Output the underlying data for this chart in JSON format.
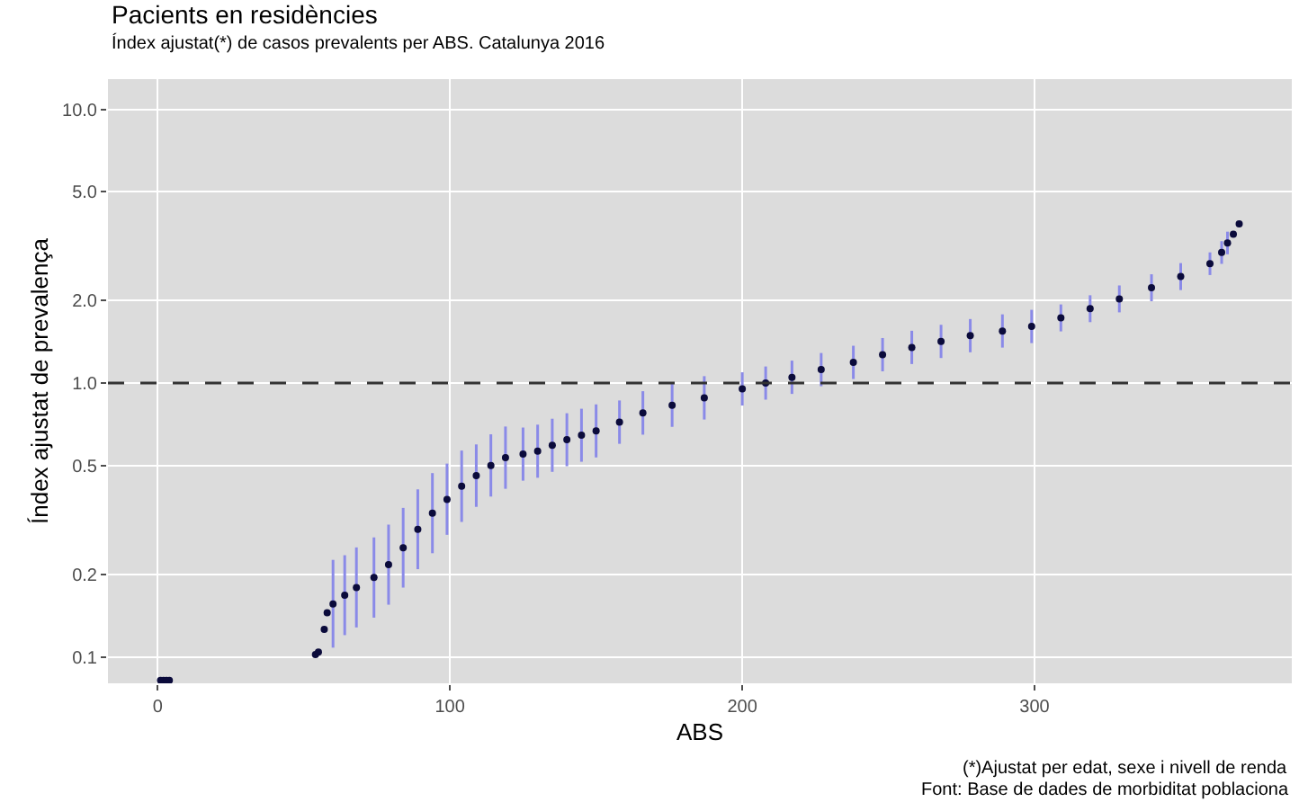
{
  "chart_data": {
    "type": "scatter",
    "title": "Pacients en residències",
    "subtitle": "Índex ajustat(*) de casos prevalents per ABS. Catalunya 2016",
    "xlabel": "ABS",
    "ylabel": "Índex ajustat de prevalença",
    "annotations": [
      "(*)Ajustat per edat, sexe i nivell de renda",
      "Font: Base de dades de morbiditat poblaciona"
    ],
    "x": [
      1,
      2,
      3,
      4,
      54,
      55,
      57,
      58,
      60,
      64,
      68,
      74,
      79,
      84,
      89,
      94,
      99,
      104,
      109,
      114,
      119,
      125,
      130,
      135,
      140,
      145,
      150,
      158,
      166,
      176,
      187,
      200,
      208,
      217,
      227,
      238,
      248,
      258,
      268,
      278,
      289,
      299,
      309,
      319,
      329,
      340,
      350,
      360,
      364,
      366,
      368,
      370
    ],
    "series": [
      {
        "color": "#0b0b3b",
        "marker": "circle",
        "values": [
          0.082,
          0.082,
          0.082,
          0.082,
          0.102,
          0.104,
          0.126,
          0.145,
          0.156,
          0.168,
          0.179,
          0.195,
          0.217,
          0.25,
          0.292,
          0.335,
          0.376,
          0.42,
          0.459,
          0.5,
          0.534,
          0.55,
          0.564,
          0.593,
          0.621,
          0.645,
          0.669,
          0.72,
          0.778,
          0.83,
          0.883,
          0.952,
          1.0,
          1.05,
          1.12,
          1.19,
          1.27,
          1.35,
          1.42,
          1.49,
          1.55,
          1.61,
          1.73,
          1.87,
          2.03,
          2.23,
          2.45,
          2.73,
          3.0,
          3.25,
          3.5,
          3.82
        ],
        "errors": [
          null,
          null,
          null,
          null,
          null,
          null,
          null,
          null,
          [
            0.108,
            0.226
          ],
          [
            0.12,
            0.235
          ],
          [
            0.128,
            0.251
          ],
          [
            0.139,
            0.273
          ],
          [
            0.155,
            0.304
          ],
          [
            0.179,
            0.35
          ],
          [
            0.209,
            0.409
          ],
          [
            0.239,
            0.469
          ],
          [
            0.279,
            0.508
          ],
          [
            0.311,
            0.567
          ],
          [
            0.353,
            0.597
          ],
          [
            0.385,
            0.65
          ],
          [
            0.411,
            0.694
          ],
          [
            0.44,
            0.688
          ],
          [
            0.451,
            0.705
          ],
          [
            0.474,
            0.741
          ],
          [
            0.497,
            0.776
          ],
          [
            0.516,
            0.806
          ],
          [
            0.535,
            0.836
          ],
          [
            0.6,
            0.864
          ],
          [
            0.648,
            0.934
          ],
          [
            0.692,
            0.996
          ],
          [
            0.736,
            1.06
          ],
          [
            0.828,
            1.095
          ],
          [
            0.87,
            1.15
          ],
          [
            0.913,
            1.208
          ],
          [
            0.974,
            1.288
          ],
          [
            1.035,
            1.369
          ],
          [
            1.104,
            1.461
          ],
          [
            1.174,
            1.553
          ],
          [
            1.235,
            1.633
          ],
          [
            1.296,
            1.714
          ],
          [
            1.348,
            1.783
          ],
          [
            1.4,
            1.852
          ],
          [
            1.545,
            1.938
          ],
          [
            1.67,
            2.094
          ],
          [
            1.813,
            2.274
          ],
          [
            1.991,
            2.498
          ],
          [
            2.187,
            2.744
          ],
          [
            2.482,
            3.003
          ],
          [
            2.727,
            3.3
          ],
          [
            2.955,
            3.575
          ],
          null,
          null
        ]
      }
    ],
    "log": "y",
    "grid": true,
    "xlim": [
      -17,
      388
    ],
    "xticks": [
      0,
      100,
      200,
      300
    ],
    "ylim": [
      0.08,
      12.9
    ],
    "yticks": [
      0.1,
      0.2,
      0.5,
      {
        "value": 1,
        "label": "1.0"
      },
      {
        "value": 2,
        "label": "2.0"
      },
      {
        "value": 5,
        "label": "5.0"
      },
      {
        "value": 10,
        "label": "10.0"
      }
    ],
    "ref_lines": [
      {
        "axis": "y",
        "value": 1,
        "label": null,
        "color": "#333333",
        "line_style": "dashed"
      }
    ]
  }
}
